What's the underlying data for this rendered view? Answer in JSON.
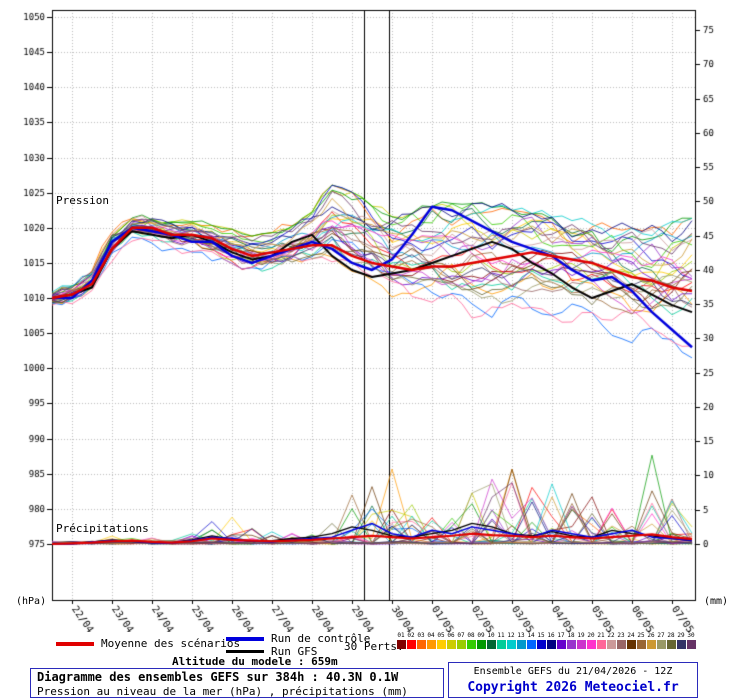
{
  "chart_data": {
    "type": "line",
    "left_axis": {
      "unit": "(hPa)",
      "min": 975,
      "max": 1050,
      "ticks": [
        1050,
        1045,
        1040,
        1035,
        1030,
        1025,
        1020,
        1015,
        1010,
        1005,
        1000,
        995,
        990,
        985,
        980,
        975
      ]
    },
    "right_axis": {
      "unit": "(mm)",
      "min": 0,
      "max": 75,
      "ticks": [
        75,
        70,
        65,
        60,
        55,
        50,
        45,
        40,
        35,
        30,
        25,
        20,
        15,
        10,
        5,
        0
      ]
    },
    "x_axis": {
      "labels": [
        "22/04",
        "23/04",
        "24/04",
        "25/04",
        "26/04",
        "27/04",
        "28/04",
        "29/04",
        "30/04",
        "01/05",
        "02/05",
        "03/05",
        "04/05",
        "05/05",
        "06/05",
        "07/05"
      ],
      "first_label_hour": 12,
      "label_step_hours": 24,
      "total_hours": 384
    },
    "section_labels": {
      "pressure": "Pression",
      "precipitation": "Précipitations"
    },
    "marker_hours": [
      187,
      202
    ],
    "x_hours": [
      0,
      12,
      24,
      36,
      48,
      60,
      72,
      84,
      96,
      108,
      120,
      132,
      144,
      156,
      168,
      180,
      192,
      204,
      216,
      228,
      240,
      252,
      264,
      276,
      288,
      300,
      312,
      324,
      336,
      348,
      360,
      372,
      384
    ],
    "pressure": {
      "mean": [
        1010,
        1010.5,
        1012,
        1017,
        1020,
        1020,
        1019,
        1019,
        1018.5,
        1017,
        1016,
        1016.5,
        1017,
        1017.5,
        1017.5,
        1016,
        1015,
        1014.5,
        1014,
        1014.5,
        1014.5,
        1015,
        1015.5,
        1016,
        1016.5,
        1016,
        1015.5,
        1015,
        1014,
        1013,
        1012.5,
        1011.5,
        1011
      ],
      "control": [
        1010,
        1010,
        1012.5,
        1018,
        1020,
        1019.5,
        1019,
        1018,
        1018,
        1016,
        1015,
        1016,
        1017,
        1018,
        1017,
        1015,
        1014,
        1015.5,
        1019,
        1023,
        1022.5,
        1021,
        1019.5,
        1018,
        1017,
        1016,
        1014,
        1012.5,
        1013,
        1011,
        1008,
        1005.5,
        1003
      ],
      "gfs": [
        1010,
        1010.5,
        1011.5,
        1017,
        1019.5,
        1019,
        1018.5,
        1019,
        1018,
        1016.5,
        1015.5,
        1016,
        1018,
        1019,
        1016,
        1014,
        1013,
        1013.5,
        1014,
        1015,
        1016,
        1017,
        1018,
        1017,
        1015,
        1013.5,
        1011.5,
        1010,
        1011,
        1012,
        1010.5,
        1009,
        1008
      ],
      "ensemble_min": [
        1008.5,
        1009,
        1010.5,
        1015,
        1018,
        1017.5,
        1016.5,
        1016,
        1015,
        1013.5,
        1013,
        1013,
        1013,
        1013.5,
        1013,
        1011,
        1009.5,
        1008,
        1007.5,
        1007,
        1006,
        1005,
        1005,
        1006,
        1006.5,
        1006,
        1005.5,
        1004.5,
        1003.5,
        1002.5,
        1001.5,
        1001,
        1000.5
      ],
      "ensemble_max": [
        1011,
        1012,
        1014,
        1019.5,
        1021.5,
        1021.5,
        1021,
        1021,
        1020.5,
        1020,
        1019,
        1019.5,
        1020.5,
        1022.5,
        1026.5,
        1025.5,
        1023.5,
        1022,
        1022.5,
        1023.5,
        1024,
        1024,
        1023.5,
        1023,
        1022.5,
        1022,
        1021.5,
        1021,
        1020.5,
        1020.5,
        1021,
        1021.5,
        1022
      ]
    },
    "precipitation": {
      "mean": [
        0,
        0.1,
        0.2,
        0.4,
        0.5,
        0.3,
        0.2,
        0.4,
        0.8,
        0.6,
        0.5,
        0.4,
        0.5,
        0.6,
        0.8,
        1,
        1.2,
        1,
        0.8,
        1,
        1.2,
        1.5,
        1.3,
        1.2,
        1,
        1.2,
        1,
        0.8,
        1,
        1.2,
        1.4,
        1,
        0.7
      ],
      "control": [
        0,
        0,
        0.3,
        0.5,
        0.4,
        0.2,
        0.1,
        0.5,
        1,
        0.8,
        0.4,
        0.3,
        0.6,
        0.8,
        1,
        2,
        3,
        1.5,
        1,
        2,
        1.5,
        2.5,
        2,
        1.5,
        1,
        2,
        1.5,
        1,
        1.5,
        2,
        1,
        0.8,
        0.5
      ],
      "gfs": [
        0,
        0.1,
        0.3,
        0.6,
        0.4,
        0.2,
        0.2,
        0.6,
        1.2,
        0.7,
        0.4,
        0.5,
        0.8,
        1,
        1.5,
        2.5,
        2,
        1.2,
        1,
        1.5,
        2,
        3,
        2.5,
        1.5,
        1.2,
        1.8,
        1.2,
        1,
        2,
        1.5,
        1.2,
        0.8,
        0.5
      ],
      "ensemble_max": [
        0.5,
        0.8,
        1,
        1.5,
        2,
        1.5,
        1,
        3,
        8,
        5,
        4,
        3,
        2.5,
        3,
        5,
        9,
        18,
        12,
        9,
        10,
        8,
        10,
        12,
        14,
        11,
        9,
        12,
        9,
        7,
        11,
        18,
        9,
        6
      ]
    },
    "colors": {
      "mean": "#e00000",
      "control": "#0000dd",
      "gfs": "#000000"
    },
    "members": {
      "count": 30,
      "seed": 11,
      "colors": [
        "#800000",
        "#ff0000",
        "#ff6600",
        "#ff9900",
        "#ffcc00",
        "#cccc00",
        "#99cc00",
        "#33cc00",
        "#009900",
        "#006633",
        "#00cc99",
        "#00cccc",
        "#0099cc",
        "#0066ff",
        "#0000cc",
        "#000080",
        "#6600cc",
        "#9933cc",
        "#cc33cc",
        "#ff33cc",
        "#ff6699",
        "#cc9999",
        "#996666",
        "#663300",
        "#996633",
        "#cc9933",
        "#999966",
        "#666633",
        "#333366",
        "#663366"
      ]
    }
  },
  "legend": {
    "mean_label": "Moyenne des scénarios",
    "control_label": "Run de contrôle",
    "gfs_label": "Run GFS",
    "perts_label": "30 Perts.",
    "member_numbers": [
      "01",
      "02",
      "03",
      "04",
      "05",
      "06",
      "07",
      "08",
      "09",
      "10",
      "11",
      "12",
      "13",
      "14",
      "15",
      "16",
      "17",
      "18",
      "19",
      "20",
      "21",
      "22",
      "23",
      "24",
      "25",
      "26",
      "27",
      "28",
      "29",
      "30"
    ]
  },
  "footer": {
    "altitude_text": "Altitude du modele : 659m",
    "title": "Diagramme des ensembles GEFS sur 384h : 40.3N 0.1W",
    "subtitle": "Pression au niveau de la mer (hPa) , précipitations (mm)",
    "run_info": "Ensemble GEFS du 21/04/2026 - 12Z",
    "copyright": "Copyright 2026 Meteociel.fr"
  }
}
